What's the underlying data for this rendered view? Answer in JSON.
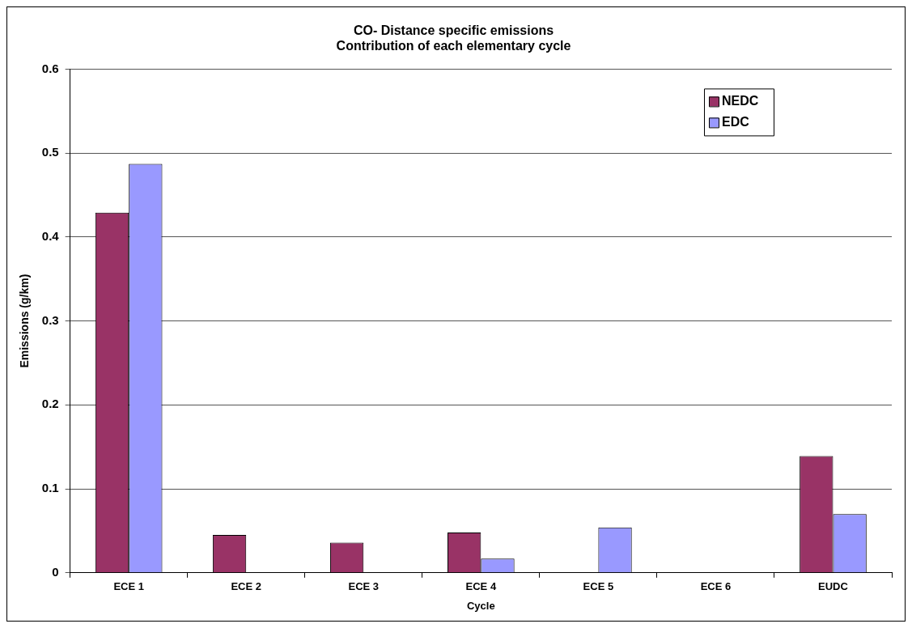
{
  "chart_data": {
    "type": "bar",
    "title": "CO- Distance specific emissions\nContribution of each elementary cycle",
    "xlabel": "Cycle",
    "ylabel": "Emissions (g/km)",
    "categories": [
      "ECE 1",
      "ECE 2",
      "ECE 3",
      "ECE 4",
      "ECE 5",
      "ECE 6",
      "EUDC"
    ],
    "series": [
      {
        "name": "NEDC",
        "color": "#993366",
        "values": [
          0.429,
          0.045,
          0.036,
          0.048,
          null,
          null,
          0.139
        ]
      },
      {
        "name": "EDC",
        "color": "#9999ff",
        "values": [
          0.487,
          null,
          null,
          0.017,
          0.054,
          null,
          0.07
        ]
      }
    ],
    "ylim": [
      0,
      0.6
    ],
    "yticks": [
      0,
      0.1,
      0.2,
      0.3,
      0.4,
      0.5,
      0.6
    ],
    "grid": "y",
    "legend": "top right"
  }
}
